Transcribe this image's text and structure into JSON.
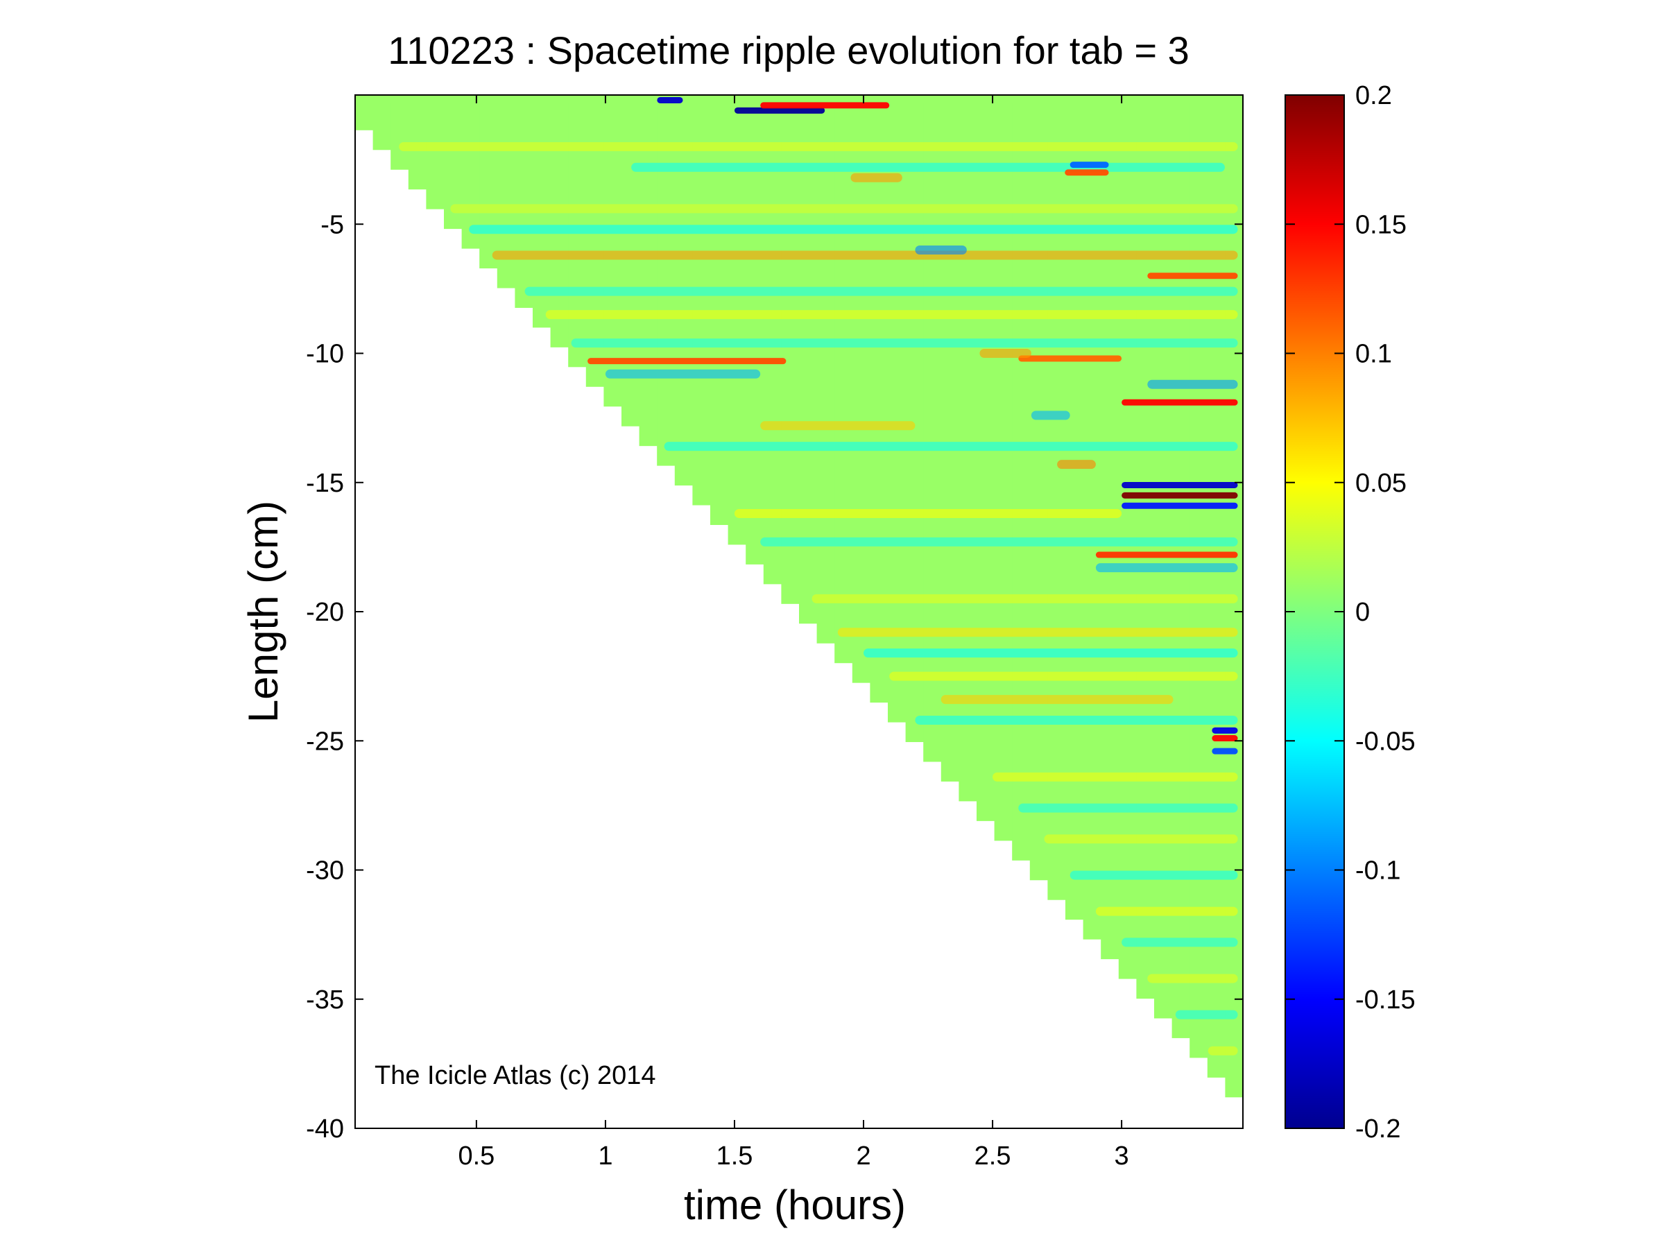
{
  "chart_data": {
    "type": "heatmap",
    "title": "110223 : Spacetime ripple evolution for tab = 3",
    "xlabel": "time (hours)",
    "ylabel": "Length (cm)",
    "xlim": [
      0.03,
      3.47
    ],
    "ylim": [
      -40,
      0
    ],
    "xticks": [
      0.5,
      1,
      1.5,
      2,
      2.5,
      3
    ],
    "xtick_labels": [
      "0.5",
      "1",
      "1.5",
      "2",
      "2.5",
      "3"
    ],
    "yticks": [
      -5,
      -10,
      -15,
      -20,
      -25,
      -30,
      -35,
      -40
    ],
    "ytick_labels": [
      "-5",
      "-10",
      "-15",
      "-20",
      "-25",
      "-30",
      "-35",
      "-40"
    ],
    "colorbar": {
      "colormap": "jet",
      "clim": [
        -0.2,
        0.2
      ],
      "ticks": [
        0.2,
        0.15,
        0.1,
        0.05,
        0,
        -0.05,
        -0.1,
        -0.15,
        -0.2
      ],
      "tick_labels": [
        "0.2",
        "0.15",
        "0.1",
        "0.05",
        "0",
        "-0.05",
        "-0.1",
        "-0.15",
        "-0.2"
      ]
    },
    "grid": false,
    "data_extent": {
      "description": "icicle length grows linearly with time; no data below the tip",
      "tip_start": {
        "time": 0.03,
        "length": -0.3
      },
      "tip_end": {
        "time": 3.47,
        "length": -38.5
      },
      "steps": 50
    },
    "background_value": 0.01,
    "features": [
      {
        "length": -0.6,
        "t_start": 1.5,
        "t_end": 1.85,
        "value": -0.19
      },
      {
        "length": -0.4,
        "t_start": 1.6,
        "t_end": 2.1,
        "value": 0.15
      },
      {
        "length": -0.2,
        "t_start": 1.2,
        "t_end": 1.3,
        "value": -0.17
      },
      {
        "length": -2.0,
        "t_start": 0.2,
        "t_end": 3.45,
        "value": 0.04
      },
      {
        "length": -2.8,
        "t_start": 1.1,
        "t_end": 3.4,
        "value": -0.045
      },
      {
        "length": -3.2,
        "t_start": 1.95,
        "t_end": 2.15,
        "value": 0.09
      },
      {
        "length": -3.0,
        "t_start": 2.78,
        "t_end": 2.95,
        "value": 0.12
      },
      {
        "length": -2.7,
        "t_start": 2.8,
        "t_end": 2.95,
        "value": -0.11
      },
      {
        "length": -4.4,
        "t_start": 0.3,
        "t_end": 3.45,
        "value": 0.035
      },
      {
        "length": -5.2,
        "t_start": 0.4,
        "t_end": 3.45,
        "value": -0.05
      },
      {
        "length": -6.2,
        "t_start": 0.45,
        "t_end": 3.45,
        "value": 0.09
      },
      {
        "length": -6.0,
        "t_start": 2.2,
        "t_end": 2.4,
        "value": -0.1
      },
      {
        "length": -7.0,
        "t_start": 3.1,
        "t_end": 3.45,
        "value": 0.12
      },
      {
        "length": -7.6,
        "t_start": 0.55,
        "t_end": 3.45,
        "value": -0.04
      },
      {
        "length": -8.5,
        "t_start": 0.6,
        "t_end": 3.45,
        "value": 0.045
      },
      {
        "length": -9.6,
        "t_start": 0.75,
        "t_end": 3.45,
        "value": -0.04
      },
      {
        "length": -10.3,
        "t_start": 0.9,
        "t_end": 1.7,
        "value": 0.12
      },
      {
        "length": -10.2,
        "t_start": 2.6,
        "t_end": 3.0,
        "value": 0.11
      },
      {
        "length": -10.0,
        "t_start": 2.45,
        "t_end": 2.65,
        "value": 0.09
      },
      {
        "length": -10.8,
        "t_start": 1.0,
        "t_end": 1.6,
        "value": -0.08
      },
      {
        "length": -11.2,
        "t_start": 3.1,
        "t_end": 3.45,
        "value": -0.09
      },
      {
        "length": -11.9,
        "t_start": 3.0,
        "t_end": 3.45,
        "value": 0.15
      },
      {
        "length": -12.4,
        "t_start": 2.65,
        "t_end": 2.8,
        "value": -0.08
      },
      {
        "length": -12.8,
        "t_start": 1.6,
        "t_end": 2.2,
        "value": 0.07
      },
      {
        "length": -13.6,
        "t_start": 1.2,
        "t_end": 3.45,
        "value": -0.045
      },
      {
        "length": -14.3,
        "t_start": 2.75,
        "t_end": 2.9,
        "value": 0.1
      },
      {
        "length": -15.1,
        "t_start": 3.0,
        "t_end": 3.45,
        "value": -0.17
      },
      {
        "length": -15.5,
        "t_start": 3.0,
        "t_end": 3.45,
        "value": 0.2
      },
      {
        "length": -15.9,
        "t_start": 3.0,
        "t_end": 3.45,
        "value": -0.14
      },
      {
        "length": -16.2,
        "t_start": 1.5,
        "t_end": 3.0,
        "value": 0.05
      },
      {
        "length": -17.3,
        "t_start": 1.6,
        "t_end": 3.45,
        "value": -0.04
      },
      {
        "length": -17.8,
        "t_start": 2.9,
        "t_end": 3.45,
        "value": 0.13
      },
      {
        "length": -18.3,
        "t_start": 2.9,
        "t_end": 3.45,
        "value": -0.08
      },
      {
        "length": -19.5,
        "t_start": 1.8,
        "t_end": 3.45,
        "value": 0.04
      },
      {
        "length": -20.8,
        "t_start": 1.9,
        "t_end": 3.45,
        "value": 0.06
      },
      {
        "length": -21.6,
        "t_start": 2.0,
        "t_end": 3.45,
        "value": -0.05
      },
      {
        "length": -22.5,
        "t_start": 2.1,
        "t_end": 3.45,
        "value": 0.045
      },
      {
        "length": -23.4,
        "t_start": 2.3,
        "t_end": 3.2,
        "value": 0.07
      },
      {
        "length": -24.2,
        "t_start": 2.2,
        "t_end": 3.45,
        "value": -0.045
      },
      {
        "length": -24.6,
        "t_start": 3.35,
        "t_end": 3.45,
        "value": -0.16
      },
      {
        "length": -24.9,
        "t_start": 3.35,
        "t_end": 3.45,
        "value": 0.15
      },
      {
        "length": -25.4,
        "t_start": 3.35,
        "t_end": 3.45,
        "value": -0.12
      },
      {
        "length": -26.4,
        "t_start": 2.5,
        "t_end": 3.45,
        "value": 0.045
      },
      {
        "length": -27.6,
        "t_start": 2.6,
        "t_end": 3.45,
        "value": -0.04
      },
      {
        "length": -28.8,
        "t_start": 2.7,
        "t_end": 3.45,
        "value": 0.04
      },
      {
        "length": -30.2,
        "t_start": 2.8,
        "t_end": 3.45,
        "value": -0.045
      },
      {
        "length": -31.6,
        "t_start": 2.9,
        "t_end": 3.45,
        "value": 0.045
      },
      {
        "length": -32.8,
        "t_start": 3.0,
        "t_end": 3.45,
        "value": -0.04
      },
      {
        "length": -34.2,
        "t_start": 3.1,
        "t_end": 3.45,
        "value": 0.04
      },
      {
        "length": -35.6,
        "t_start": 3.2,
        "t_end": 3.45,
        "value": -0.04
      },
      {
        "length": -37.0,
        "t_start": 3.3,
        "t_end": 3.45,
        "value": 0.04
      }
    ]
  },
  "watermark": "The Icicle Atlas (c) 2014"
}
